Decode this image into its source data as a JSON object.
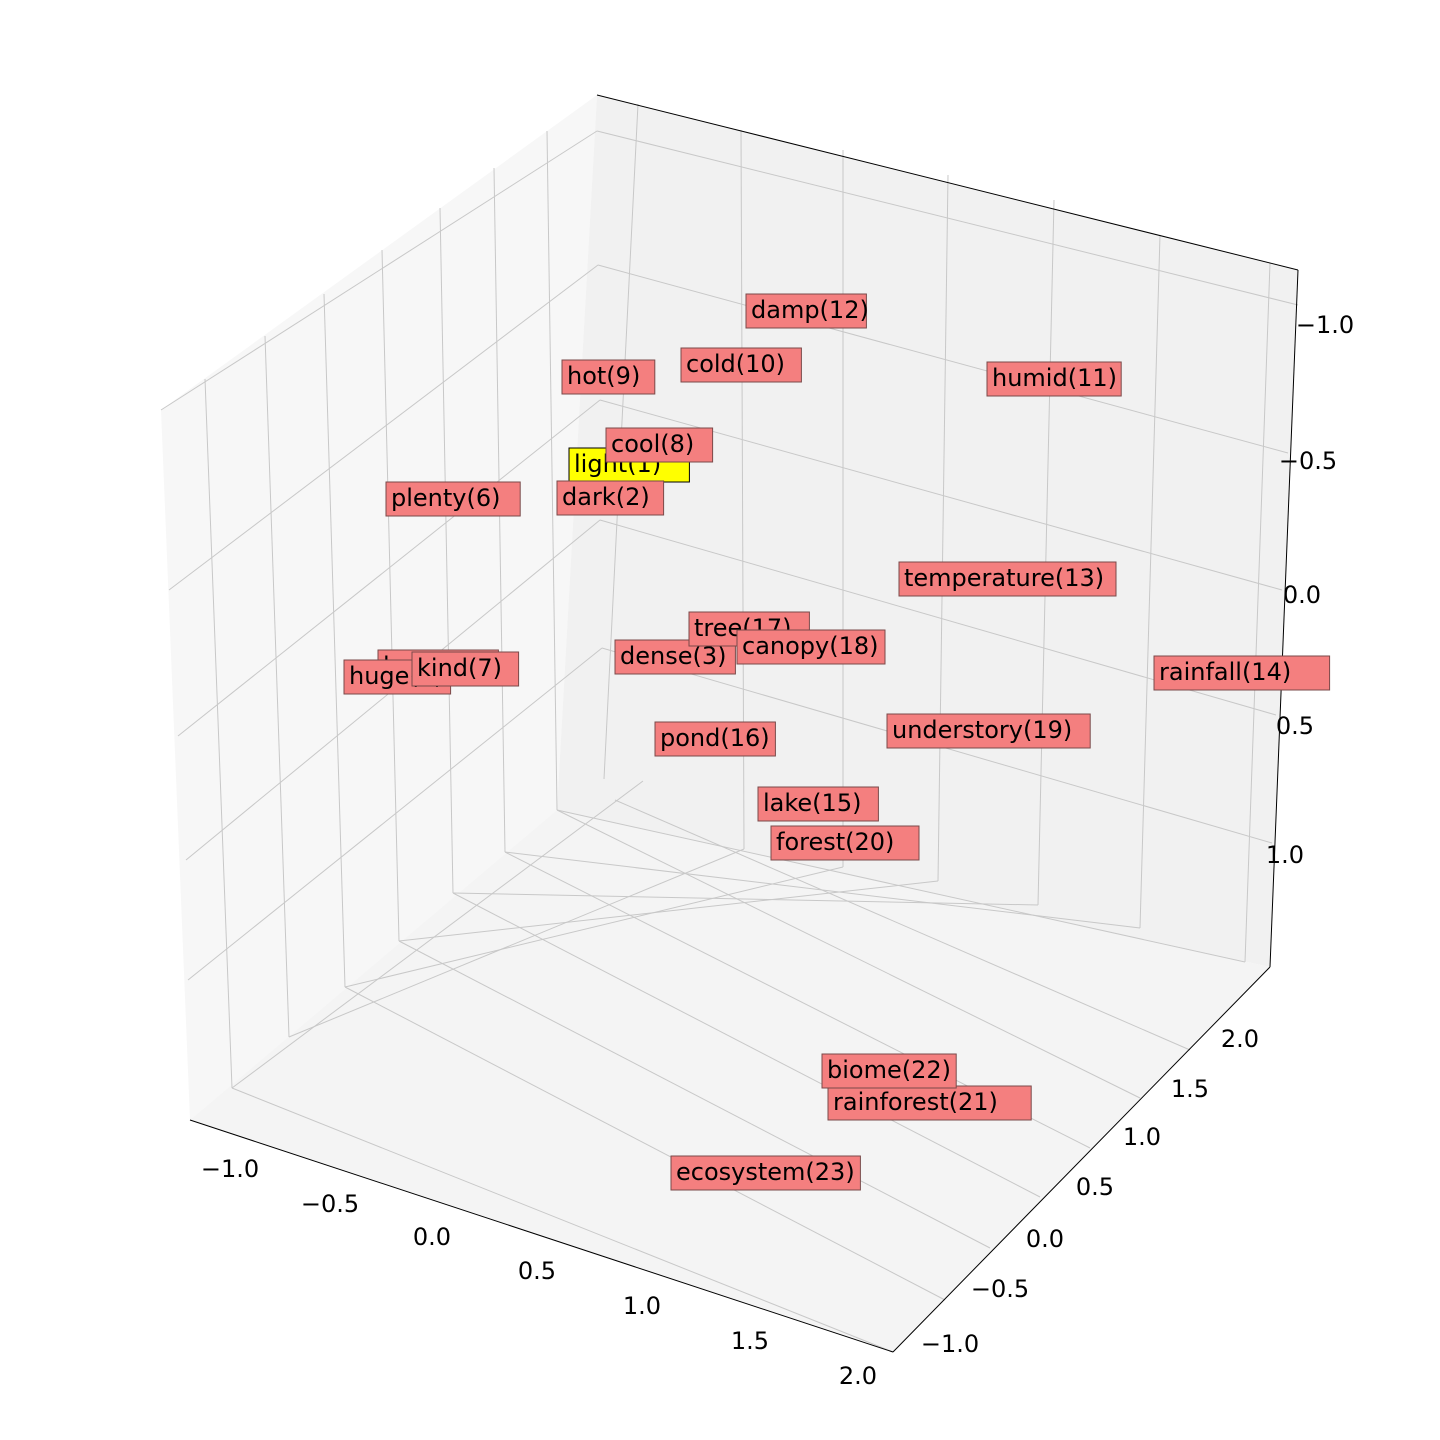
{
  "chart_data": {
    "type": "scatter",
    "title": "",
    "xlabel": "",
    "ylabel": "",
    "zlabel": "",
    "grid": true,
    "legend": "none",
    "axes": {
      "x": {
        "range": [
          -1.2,
          2.1
        ],
        "ticks": [
          "−1.0",
          "−0.5",
          "0.0",
          "0.5",
          "1.0",
          "1.5",
          "2.0"
        ]
      },
      "y": {
        "range": [
          -1.25,
          2.25
        ],
        "ticks": [
          "−1.0",
          "−0.5",
          "0.0",
          "0.5",
          "1.0",
          "1.5",
          "2.0"
        ]
      },
      "z": {
        "range": [
          -1.45,
          1.15
        ],
        "ticks": [
          "−1.0",
          "−0.5",
          "0.0",
          "0.5",
          "1.0"
        ]
      }
    },
    "points": [
      {
        "label": "light(1)",
        "highlight": true
      },
      {
        "label": "dark(2)"
      },
      {
        "label": "dense(3)"
      },
      {
        "label": "large(4)"
      },
      {
        "label": "huge(5)"
      },
      {
        "label": "plenty(6)"
      },
      {
        "label": "kind(7)"
      },
      {
        "label": "cool(8)"
      },
      {
        "label": "hot(9)"
      },
      {
        "label": "cold(10)"
      },
      {
        "label": "humid(11)"
      },
      {
        "label": "damp(12)"
      },
      {
        "label": "temperature(13)"
      },
      {
        "label": "rainfall(14)"
      },
      {
        "label": "lake(15)"
      },
      {
        "label": "pond(16)"
      },
      {
        "label": "tree(17)"
      },
      {
        "label": "canopy(18)"
      },
      {
        "label": "understory(19)"
      },
      {
        "label": "forest(20)"
      },
      {
        "label": "rainforest(21)"
      },
      {
        "label": "biome(22)"
      },
      {
        "label": "ecosystem(23)"
      }
    ],
    "colors": {
      "label_box": "#f47f7f",
      "label_box_highlight": "#ffff00",
      "marker": "#5a6b8c",
      "pane_left": "#f7f7f7",
      "pane_right": "#f1f1f1",
      "pane_floor": "#f4f4f4",
      "grid": "#c8c8c8"
    }
  }
}
